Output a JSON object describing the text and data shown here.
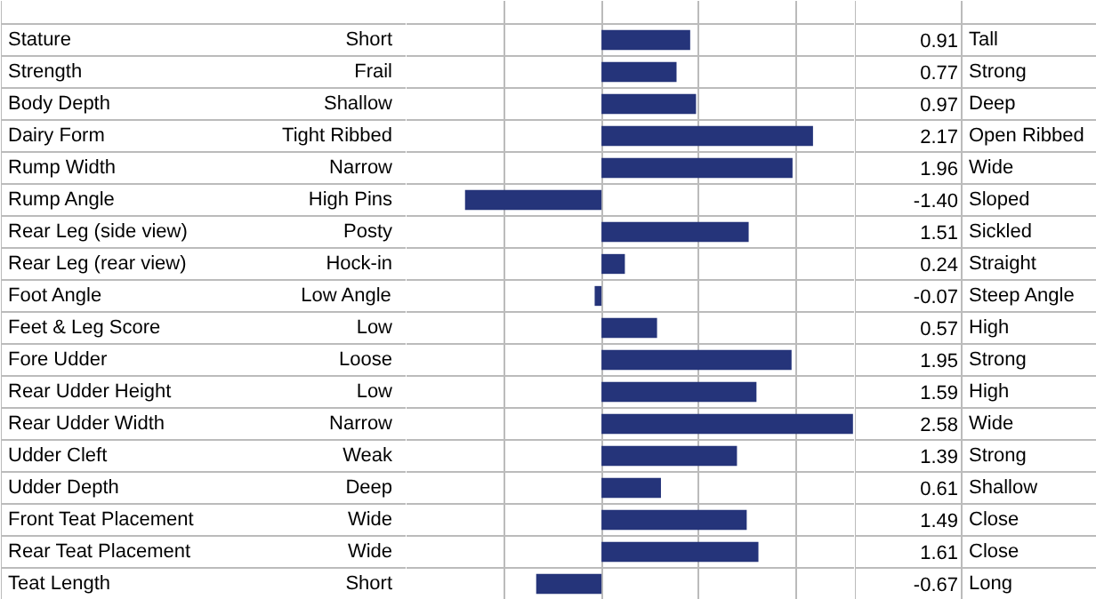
{
  "chart_data": {
    "type": "bar",
    "orientation": "horizontal",
    "color": "#25347a",
    "categories": [
      "Stature",
      "Strength",
      "Body Depth",
      "Dairy Form",
      "Rump Width",
      "Rump Angle",
      "Rear Leg (side view)",
      "Rear Leg (rear view)",
      "Foot Angle",
      "Feet & Leg Score",
      "Fore Udder",
      "Rear Udder Height",
      "Rear Udder Width",
      "Udder Cleft",
      "Udder Depth",
      "Front Teat Placement",
      "Rear Teat Placement",
      "Teat Length"
    ],
    "values": [
      0.91,
      0.77,
      0.97,
      2.17,
      1.96,
      -1.4,
      1.51,
      0.24,
      -0.07,
      0.57,
      1.95,
      1.59,
      2.58,
      1.39,
      0.61,
      1.49,
      1.61,
      -0.67
    ],
    "value_labels": [
      "0.91",
      "0.77",
      "0.97",
      "2.17",
      "1.96",
      "-1.40",
      "1.51",
      "0.24",
      "-0.07",
      "0.57",
      "1.95",
      "1.59",
      "2.58",
      "1.39",
      "0.61",
      "1.49",
      "1.61",
      "-0.67"
    ],
    "annotations": [
      "Short",
      "Frail",
      "Shallow",
      "Tight Ribbed",
      "Narrow",
      "High Pins",
      "Posty",
      "Hock-in",
      "Low Angle",
      "Low",
      "Loose",
      "Low",
      "Narrow",
      "Weak",
      "Deep",
      "Wide",
      "Wide",
      "Short",
      "Tall",
      "Strong",
      "Deep",
      "Open Ribbed",
      "Wide",
      "Sloped",
      "Sickled",
      "Straight",
      "Steep Angle",
      "High",
      "Strong",
      "High",
      "Wide",
      "Strong",
      "Shallow",
      "Close",
      "Close",
      "Long"
    ],
    "xlim": [
      -2,
      2.6
    ],
    "xticks": [
      {
        "value": -2,
        "label": null
      },
      {
        "value": -1,
        "label": null
      },
      {
        "value": 0,
        "label": null
      },
      {
        "value": 1,
        "label": null
      },
      {
        "value": 2,
        "label": null
      }
    ],
    "grid": true,
    "tick_labels": false
  }
}
